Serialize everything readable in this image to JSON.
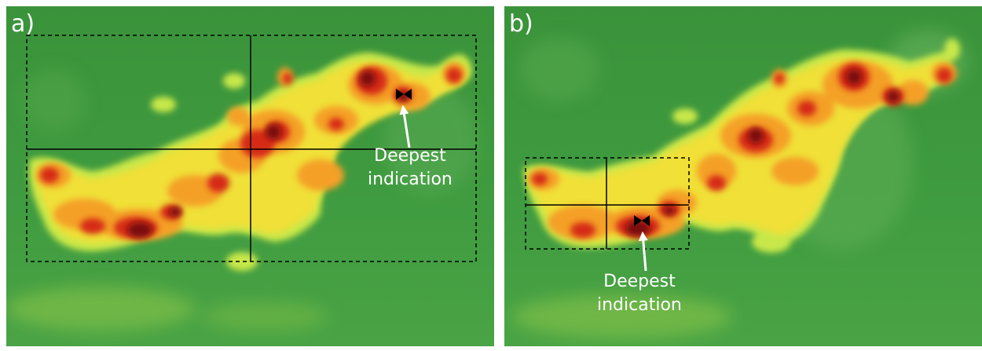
{
  "panels": [
    {
      "label": "a)",
      "annotation": {
        "line1": "Deepest",
        "line2": "indication"
      }
    },
    {
      "label": "b)",
      "annotation": {
        "line1": "Deepest",
        "line2": "indication"
      }
    }
  ],
  "colors": {
    "background": "#3f9a3f",
    "level_1": "#c8e84a",
    "level_2": "#f0e038",
    "level_3": "#f4a028",
    "level_4": "#d62a12",
    "level_5": "#7a0a0a",
    "annotation": "#ffffff",
    "frame": "#000000"
  }
}
